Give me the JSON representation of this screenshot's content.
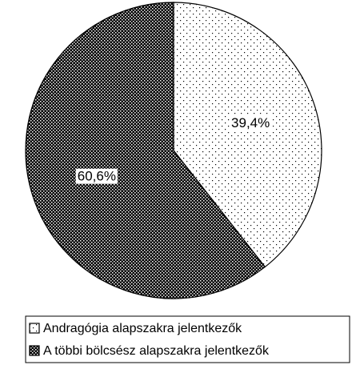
{
  "chart_data": {
    "type": "pie",
    "categories": [
      "Andragógia alapszakra jelentkezők",
      "A többi bölcsész alapszakra jelentkezők"
    ],
    "values": [
      39.4,
      60.6
    ],
    "value_labels": [
      "39,4%",
      "60,6%"
    ],
    "legend": "bottom"
  }
}
